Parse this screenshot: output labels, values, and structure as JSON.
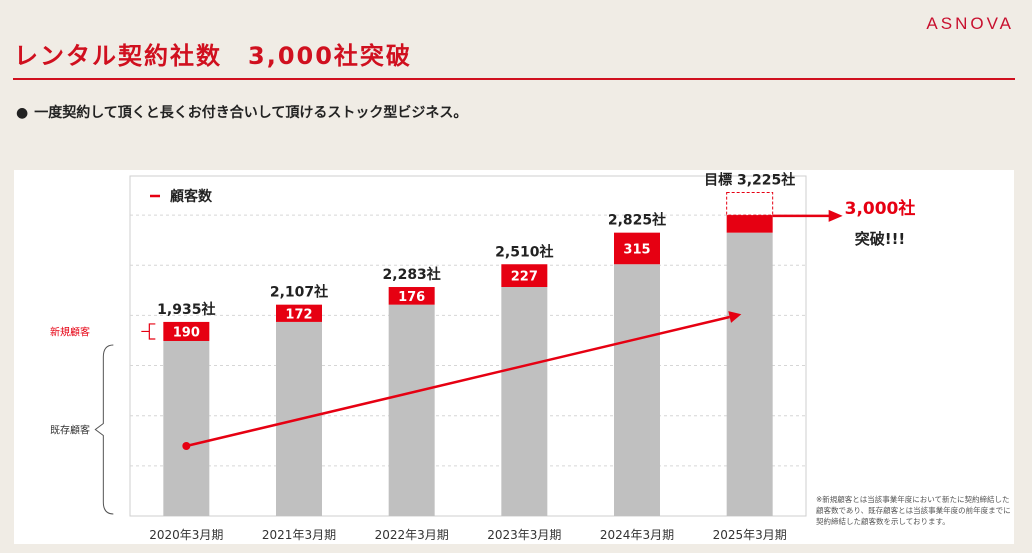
{
  "header": {
    "logo": "ASNOVA",
    "title": "レンタル契約社数　3,000社突破",
    "bullet_marker": "●",
    "bullet": "一度契約して頂くと長くお付き合いして頂けるストック型ビジネス。"
  },
  "labels": {
    "new_customers": "新規顧客",
    "existing_customers": "既存顧客"
  },
  "callout": {
    "value": "3,000社",
    "text": "突破!!!"
  },
  "footnote": "※新規顧客とは当該事業年度において新たに契約締結した顧客数であり、既存顧客とは当該事業年度の前年度までに契約締結した顧客数を示しております。",
  "colors": {
    "accent": "#d0101f",
    "new": "#e60012",
    "existing": "#c0c0c0"
  },
  "chart_data": {
    "type": "bar",
    "stacked": true,
    "legend": "顧客数",
    "categories": [
      "2020年3月期",
      "2021年3月期",
      "2022年3月期",
      "2023年3月期",
      "2024年3月期",
      "2025年3月期"
    ],
    "totals": [
      1935,
      2107,
      2283,
      2510,
      2825,
      3225
    ],
    "total_labels": [
      "1,935社",
      "2,107社",
      "2,283社",
      "2,510社",
      "2,825社",
      "目標 3,225社"
    ],
    "series": [
      {
        "name": "既存顧客",
        "values": [
          1745,
          1935,
          2107,
          2283,
          2510,
          2825
        ]
      },
      {
        "name": "新規顧客",
        "values": [
          190,
          172,
          176,
          227,
          315,
          400
        ]
      }
    ],
    "new_labels": [
      "190",
      "172",
      "176",
      "227",
      "315",
      ""
    ],
    "target_index": 5,
    "achieved": 3000,
    "ylim": [
      0,
      3500
    ],
    "grid": true
  }
}
